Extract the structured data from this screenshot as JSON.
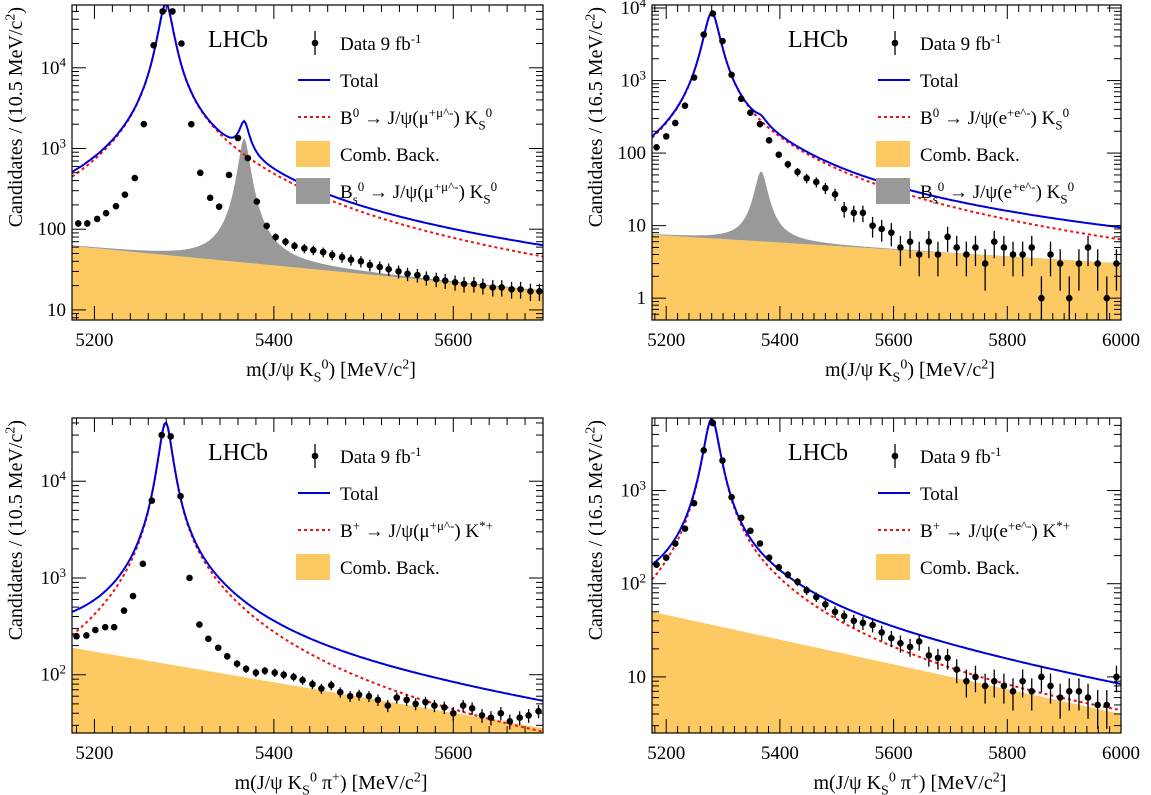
{
  "figure": {
    "experiment_label": "LHCb",
    "colors": {
      "total": "#0000dd",
      "signal": "#ee1111",
      "combinatorial": "#fdc963",
      "bs": "#999999",
      "data": "#000000"
    }
  },
  "chart_data": [
    {
      "type": "scatter",
      "name": "top-left",
      "xlabel": "m(J/ψ K_S^0) [MeV/c^2]",
      "ylabel": "Candidates / (10.5 MeV/c^2)",
      "xlim": [
        5175,
        5700
      ],
      "ylim": [
        7.5,
        60000
      ],
      "yscale": "log",
      "xticks": [
        5200,
        5400,
        5600
      ],
      "yticks": [
        10,
        100,
        1000,
        10000
      ],
      "legend": {
        "position": "top-right",
        "entries": [
          {
            "kind": "data",
            "label": "Data 9 fb^-1"
          },
          {
            "kind": "total",
            "label": "Total"
          },
          {
            "kind": "signal",
            "label": "B^0 → J/ψ(μ^+μ^-) K_S^0"
          },
          {
            "kind": "comb",
            "label": "Comb. Back."
          },
          {
            "kind": "bs",
            "label": "B_s^0 → J/ψ(μ^+μ^-) K_S^0"
          }
        ]
      },
      "model": {
        "peak": 5279.6,
        "height": 62000,
        "gamma": 7.5,
        "comb_start": 62,
        "comb_end": 17,
        "bs_peak": 5366.9,
        "bs_height": 1300,
        "bs_gamma": 6
      },
      "series": [
        {
          "name": "Data 9 fb^-1",
          "x": [
            5182,
            5192,
            5203,
            5213,
            5224,
            5234,
            5245,
            5255,
            5266,
            5276,
            5287,
            5297,
            5308,
            5318,
            5329,
            5339,
            5350,
            5360,
            5371,
            5381,
            5392,
            5402,
            5413,
            5423,
            5434,
            5444,
            5455,
            5465,
            5476,
            5486,
            5497,
            5507,
            5518,
            5528,
            5539,
            5549,
            5560,
            5570,
            5581,
            5591,
            5602,
            5612,
            5623,
            5633,
            5644,
            5654,
            5665,
            5675,
            5686,
            5696
          ],
          "y": [
            118,
            118,
            134,
            158,
            193,
            268,
            430,
            2000,
            19000,
            50000,
            50000,
            20000,
            2000,
            500,
            245,
            190,
            470,
            1350,
            760,
            220,
            110,
            80,
            70,
            62,
            58,
            55,
            52,
            48,
            45,
            42,
            40,
            36,
            34,
            32,
            30,
            28,
            27,
            25,
            24,
            23,
            22,
            21,
            21,
            20,
            19,
            19,
            18,
            18,
            17,
            17
          ]
        }
      ]
    },
    {
      "type": "scatter",
      "name": "top-right",
      "xlabel": "m(J/ψ K_S^0) [MeV/c^2]",
      "ylabel": "Candidates / (16.5 MeV/c^2)",
      "xlim": [
        5175,
        6000
      ],
      "ylim": [
        0.5,
        11000
      ],
      "yscale": "log",
      "xticks": [
        5200,
        5400,
        5600,
        5800,
        6000
      ],
      "yticks": [
        1,
        10,
        100,
        1000,
        10000
      ],
      "legend": {
        "position": "top-right",
        "entries": [
          {
            "kind": "data",
            "label": "Data 9 fb^-1"
          },
          {
            "kind": "total",
            "label": "Total"
          },
          {
            "kind": "signal",
            "label": "B^0 → J/ψ(e^+e^-) K_S^0"
          },
          {
            "kind": "comb",
            "label": "Comb. Back."
          },
          {
            "kind": "bs",
            "label": "B_s^0 → J/ψ(e^+e^-) K_S^0"
          }
        ]
      },
      "model": {
        "peak": 5280,
        "height": 8500,
        "gamma": 13,
        "comb_start": 7.5,
        "comb_end": 3,
        "bs_peak": 5366.9,
        "bs_height": 50,
        "bs_gamma": 11
      },
      "series": [
        {
          "name": "Data 9 fb^-1",
          "x": [
            5183,
            5200,
            5216,
            5233,
            5249,
            5266,
            5282,
            5299,
            5315,
            5332,
            5348,
            5365,
            5381,
            5398,
            5414,
            5431,
            5447,
            5464,
            5480,
            5497,
            5513,
            5530,
            5546,
            5563,
            5579,
            5596,
            5612,
            5629,
            5645,
            5662,
            5678,
            5695,
            5711,
            5728,
            5744,
            5761,
            5777,
            5794,
            5810,
            5827,
            5843,
            5860,
            5876,
            5893,
            5909,
            5926,
            5942,
            5959,
            5975,
            5992
          ],
          "y": [
            120,
            170,
            260,
            450,
            1100,
            4300,
            8400,
            3500,
            1200,
            560,
            360,
            250,
            150,
            95,
            70,
            55,
            45,
            40,
            33,
            27,
            17,
            15,
            15,
            10,
            9,
            8,
            5,
            6,
            4,
            6,
            4,
            7,
            5,
            4,
            5,
            3,
            6,
            5,
            4,
            4,
            5,
            1,
            4,
            3,
            1,
            3,
            5,
            3,
            1,
            3
          ]
        }
      ]
    },
    {
      "type": "scatter",
      "name": "bottom-left",
      "xlabel": "m(J/ψ K_S^0 π^+) [MeV/c^2]",
      "ylabel": "Candidates / (10.5 MeV/c^2)",
      "xlim": [
        5175,
        5700
      ],
      "ylim": [
        25,
        45000
      ],
      "yscale": "log",
      "xticks": [
        5200,
        5400,
        5600
      ],
      "yticks": [
        100,
        1000,
        10000
      ],
      "legend": {
        "position": "top-right",
        "entries": [
          {
            "kind": "data",
            "label": "Data 9 fb^-1"
          },
          {
            "kind": "total",
            "label": "Total"
          },
          {
            "kind": "signal",
            "label": "B^+ → J/ψ(μ^+μ^-) K^*+"
          },
          {
            "kind": "comb",
            "label": "Comb. Back."
          }
        ]
      },
      "model": {
        "peak": 5279.3,
        "height": 40000,
        "gamma": 7,
        "comb_start": 190,
        "comb_end": 28
      },
      "series": [
        {
          "name": "Data 9 fb^-1",
          "x": [
            5180,
            5191,
            5201,
            5212,
            5222,
            5233,
            5243,
            5254,
            5264,
            5275,
            5285,
            5296,
            5306,
            5317,
            5327,
            5338,
            5348,
            5359,
            5369,
            5380,
            5390,
            5401,
            5411,
            5422,
            5432,
            5443,
            5453,
            5464,
            5474,
            5485,
            5495,
            5506,
            5516,
            5527,
            5537,
            5548,
            5558,
            5569,
            5579,
            5590,
            5600,
            5611,
            5621,
            5632,
            5642,
            5653,
            5663,
            5674,
            5684,
            5695
          ],
          "y": [
            250,
            255,
            290,
            310,
            310,
            460,
            650,
            1400,
            6300,
            30000,
            29000,
            7000,
            1000,
            330,
            235,
            190,
            155,
            130,
            115,
            105,
            110,
            105,
            100,
            95,
            88,
            80,
            72,
            78,
            66,
            60,
            62,
            60,
            55,
            48,
            58,
            55,
            50,
            52,
            48,
            46,
            40,
            48,
            45,
            38,
            36,
            40,
            33,
            36,
            38,
            42
          ]
        }
      ]
    },
    {
      "type": "scatter",
      "name": "bottom-right",
      "xlabel": "m(J/ψ K_S^0 π^+) [MeV/c^2]",
      "ylabel": "Candidates / (16.5 MeV/c^2)",
      "xlim": [
        5175,
        6000
      ],
      "ylim": [
        2.5,
        6000
      ],
      "yscale": "log",
      "xticks": [
        5200,
        5400,
        5600,
        5800,
        6000
      ],
      "yticks": [
        10,
        100,
        1000
      ],
      "legend": {
        "position": "top-right",
        "entries": [
          {
            "kind": "data",
            "label": "Data 9 fb^-1"
          },
          {
            "kind": "total",
            "label": "Total"
          },
          {
            "kind": "signal",
            "label": "B^+ → J/ψ(e^+e^-) K^*+"
          },
          {
            "kind": "comb",
            "label": "Comb. Back."
          }
        ]
      },
      "model": {
        "peak": 5280,
        "height": 5800,
        "gamma": 13,
        "comb_start": 50,
        "comb_end": 4
      },
      "series": [
        {
          "name": "Data 9 fb^-1",
          "x": [
            5183,
            5200,
            5216,
            5233,
            5249,
            5266,
            5282,
            5299,
            5315,
            5332,
            5348,
            5365,
            5381,
            5398,
            5414,
            5431,
            5447,
            5464,
            5480,
            5497,
            5513,
            5530,
            5546,
            5563,
            5579,
            5596,
            5612,
            5629,
            5645,
            5662,
            5678,
            5695,
            5711,
            5728,
            5744,
            5761,
            5777,
            5794,
            5810,
            5827,
            5843,
            5860,
            5876,
            5893,
            5909,
            5926,
            5942,
            5959,
            5975,
            5992
          ],
          "y": [
            160,
            190,
            270,
            390,
            730,
            2700,
            5300,
            2100,
            850,
            510,
            370,
            270,
            190,
            150,
            125,
            105,
            85,
            72,
            60,
            50,
            45,
            40,
            38,
            36,
            30,
            26,
            23,
            21,
            24,
            17,
            16,
            16,
            12,
            9,
            10,
            8,
            9,
            8,
            7,
            9,
            7,
            10,
            8,
            6,
            7,
            7,
            6,
            5,
            5,
            10
          ]
        }
      ]
    }
  ]
}
